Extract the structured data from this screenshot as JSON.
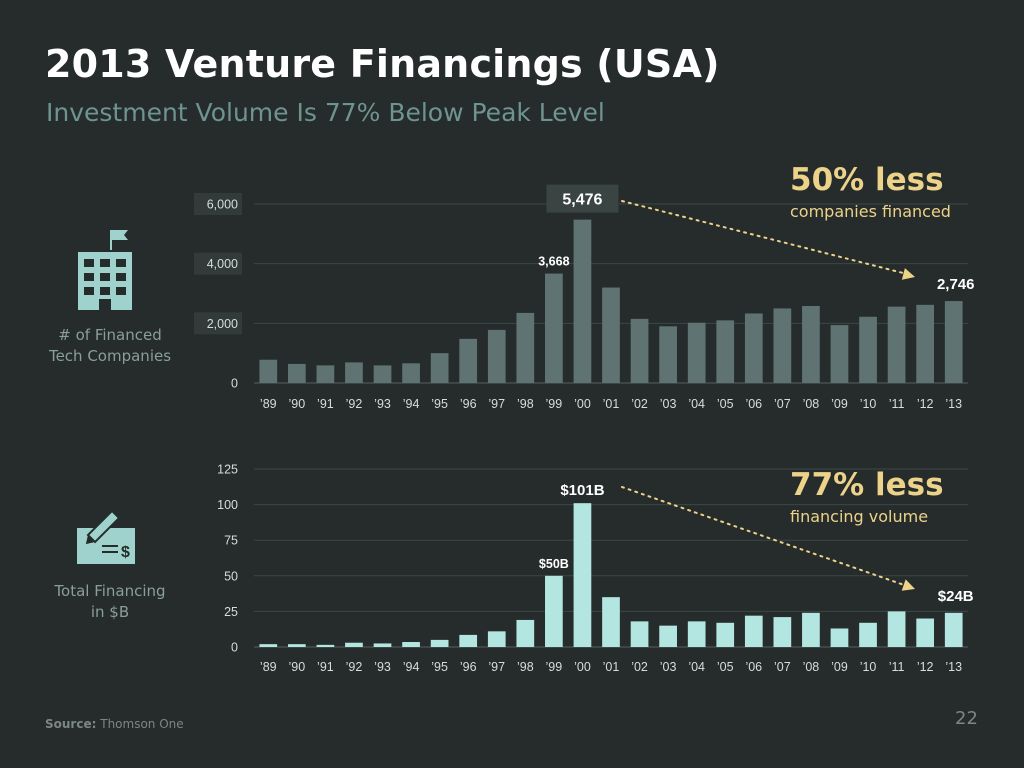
{
  "title": "2013 Venture Financings (USA)",
  "subtitle": "Investment Volume Is 77% Below Peak Level",
  "source_label": "Source:",
  "source_text": "Thomson One",
  "page_number": "22",
  "colors": {
    "background": "#252c2b",
    "bar_companies": "#5f7472",
    "bar_financing": "#b4e6e1",
    "accent": "#edd28a"
  },
  "icons": {
    "top": "office-building-icon",
    "bottom": "signed-check-icon"
  },
  "side_labels": {
    "companies": [
      "# of Financed",
      "Tech Companies"
    ],
    "financing": [
      "Total Financing",
      "in $B"
    ]
  },
  "callouts": {
    "companies": {
      "big": "50% less",
      "small": "companies financed"
    },
    "financing": {
      "big": "77% less",
      "small": "financing volume"
    }
  },
  "chart_data": [
    {
      "type": "bar",
      "categories": [
        "’89",
        "’90",
        "’91",
        "’92",
        "’93",
        "’94",
        "’95",
        "’96",
        "’97",
        "’98",
        "’99",
        "’00",
        "’01",
        "’02",
        "’03",
        "’04",
        "’05",
        "’06",
        "’07",
        "’08",
        "’09",
        "’10",
        "’11",
        "’12",
        "’13"
      ],
      "values": [
        780,
        640,
        590,
        690,
        590,
        660,
        1000,
        1480,
        1780,
        2350,
        3668,
        5476,
        3200,
        2150,
        1900,
        2020,
        2100,
        2330,
        2500,
        2580,
        1940,
        2220,
        2560,
        2620,
        2746
      ],
      "yticks": [
        "0",
        "2,000",
        "4,000",
        "6,000"
      ],
      "ytick_values": [
        0,
        2000,
        4000,
        6000
      ],
      "ylim": [
        0,
        6000
      ],
      "grid": true,
      "annotations": [
        {
          "index": 10,
          "label": "3,668",
          "style": "plain"
        },
        {
          "index": 11,
          "label": "5,476",
          "style": "boxed"
        },
        {
          "index": 24,
          "label": "2,746",
          "style": "plain"
        }
      ]
    },
    {
      "type": "bar",
      "categories": [
        "’89",
        "’90",
        "’91",
        "’92",
        "’93",
        "’94",
        "’95",
        "’96",
        "’97",
        "’98",
        "’99",
        "’00",
        "’01",
        "’02",
        "’03",
        "’04",
        "’05",
        "’06",
        "’07",
        "’08",
        "’09",
        "’10",
        "’11",
        "’12",
        "’13"
      ],
      "values": [
        2,
        2,
        1.5,
        3,
        2.5,
        3.5,
        5,
        8.5,
        11,
        19,
        50,
        101,
        35,
        18,
        15,
        18,
        17,
        22,
        21,
        24,
        13,
        17,
        25,
        20,
        24
      ],
      "yticks": [
        "0",
        "25",
        "50",
        "75",
        "100",
        "125"
      ],
      "ytick_values": [
        0,
        25,
        50,
        75,
        100,
        125
      ],
      "ylim": [
        0,
        125
      ],
      "grid": true,
      "annotations": [
        {
          "index": 10,
          "label": "$50B",
          "style": "plain"
        },
        {
          "index": 11,
          "label": "$101B",
          "style": "plain"
        },
        {
          "index": 24,
          "label": "$24B",
          "style": "plain"
        }
      ]
    }
  ]
}
